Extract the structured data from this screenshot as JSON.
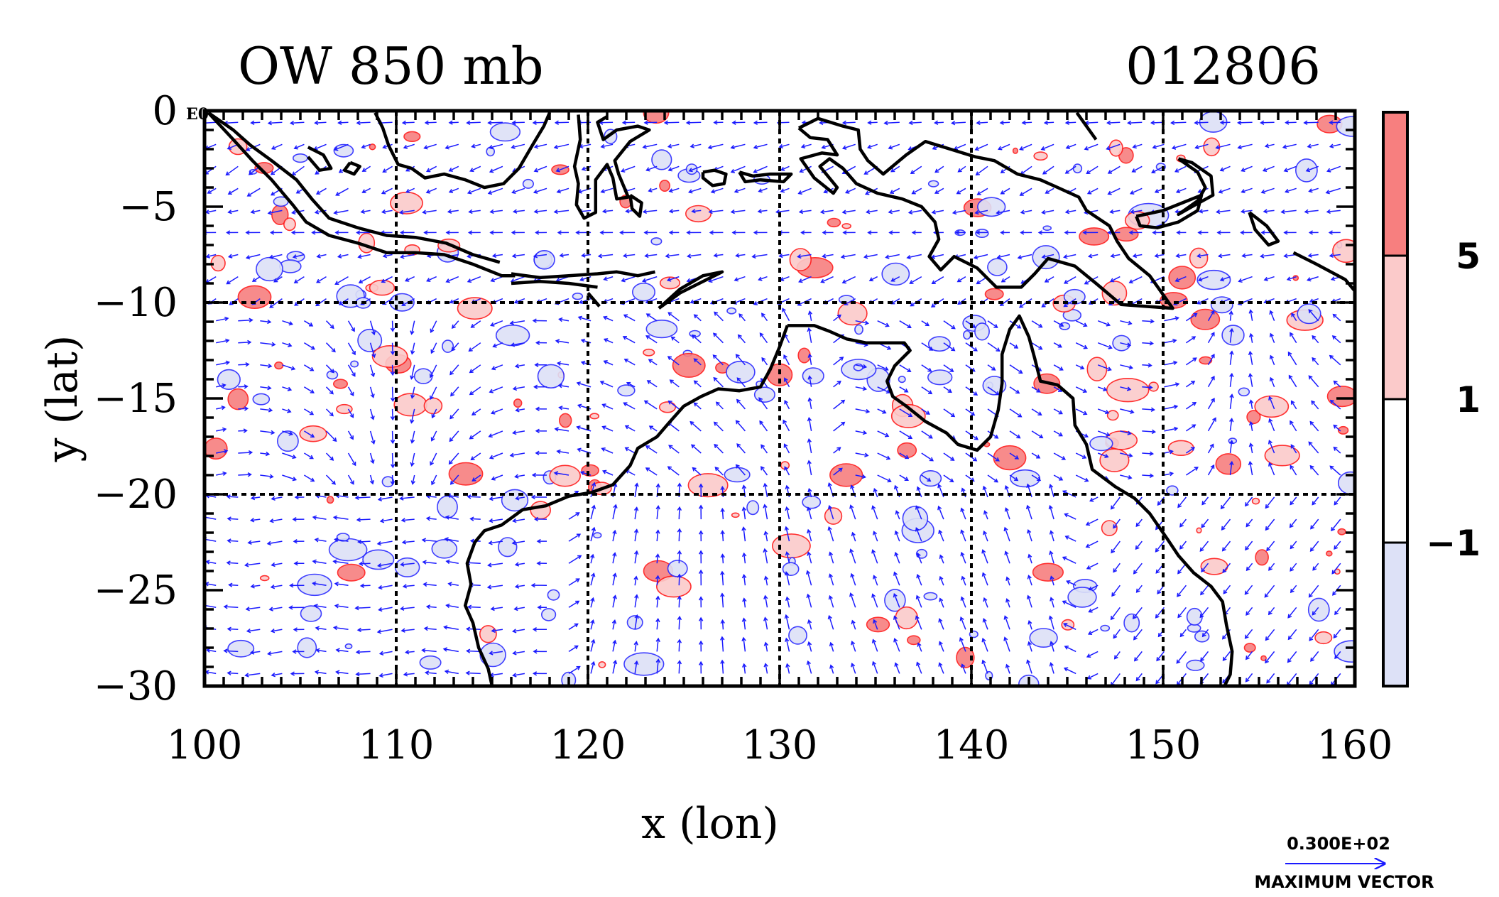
{
  "title_left": "OW 850 mb",
  "title_right": "012806",
  "corner_label": "E0",
  "xlabel": "x (lon)",
  "ylabel": "y (lat)",
  "colors": {
    "vector": "#1a1aff",
    "positive_contour": "#ff1a1a",
    "negative_contour": "#2a2aff",
    "coast": "#000000",
    "band_high": "#f77f7f",
    "band_mid": "#fbcaca",
    "band_zero": "#ffffff",
    "band_low": "#dde1f7"
  },
  "chart_data": {
    "type": "vector field with filled contours",
    "variable": "OW",
    "level": "850 mb",
    "time": "012806",
    "xlim": [
      100,
      160
    ],
    "ylim": [
      -30,
      0
    ],
    "xticks": [
      100,
      110,
      120,
      130,
      140,
      150,
      160
    ],
    "xtick_labels": [
      "100",
      "110",
      "120",
      "130",
      "140",
      "150",
      "160"
    ],
    "yticks": [
      0,
      -5,
      -10,
      -15,
      -20,
      -25,
      -30
    ],
    "ytick_labels": [
      "0",
      "−5",
      "−10",
      "−15",
      "−20",
      "−25",
      "−30"
    ],
    "grid_lon": [
      110,
      120,
      130,
      140,
      150
    ],
    "grid_lat": [
      -10,
      -20
    ],
    "grid": true,
    "colorbar": {
      "levels": [
        -1,
        1,
        5
      ],
      "labels": [
        "−1",
        "1",
        "5"
      ],
      "bands": [
        "below −1",
        "−1 to 1",
        "1 to 5",
        "above 5"
      ]
    },
    "vector_reference": {
      "value_label": "0.300E+02",
      "caption": "MAXIMUM VECTOR"
    },
    "coastline_segments": [
      [
        [
          100.2,
          -0.1
        ],
        [
          101.5,
          -1.5
        ],
        [
          102.5,
          -2.6
        ],
        [
          103.5,
          -3.6
        ],
        [
          104.6,
          -4.9
        ],
        [
          105.3,
          -5.8
        ],
        [
          106.5,
          -6.5
        ],
        [
          108.0,
          -6.9
        ],
        [
          109.5,
          -7.4
        ],
        [
          111.0,
          -7.4
        ],
        [
          112.5,
          -7.5
        ],
        [
          114.0,
          -8.0
        ],
        [
          115.5,
          -8.6
        ],
        [
          116.2,
          -8.6
        ]
      ],
      [
        [
          100.2,
          -0.1
        ],
        [
          101.5,
          -1.0
        ],
        [
          102.4,
          -1.8
        ],
        [
          103.5,
          -2.6
        ],
        [
          104.8,
          -3.6
        ],
        [
          105.6,
          -4.6
        ],
        [
          106.5,
          -5.6
        ],
        [
          108.0,
          -6.1
        ],
        [
          109.5,
          -6.5
        ],
        [
          111.0,
          -6.6
        ],
        [
          112.6,
          -6.9
        ],
        [
          114.0,
          -7.5
        ],
        [
          115.4,
          -7.9
        ]
      ],
      [
        [
          116.0,
          -8.5
        ],
        [
          117.5,
          -8.7
        ],
        [
          119.0,
          -8.6
        ],
        [
          120.5,
          -8.5
        ],
        [
          121.5,
          -8.4
        ],
        [
          122.6,
          -8.6
        ],
        [
          123.5,
          -8.4
        ]
      ],
      [
        [
          116.0,
          -9.0
        ],
        [
          117.5,
          -8.9
        ],
        [
          119.0,
          -9.0
        ],
        [
          120.5,
          -9.2
        ]
      ],
      [
        [
          120.0,
          -9.5
        ],
        [
          120.6,
          -10.2
        ]
      ],
      [
        [
          123.7,
          -10.3
        ],
        [
          124.8,
          -9.5
        ],
        [
          125.8,
          -9.0
        ],
        [
          127.0,
          -8.4
        ],
        [
          126.0,
          -8.6
        ],
        [
          124.8,
          -9.3
        ],
        [
          123.7,
          -10.3
        ]
      ],
      [
        [
          110.8,
          -3.0
        ],
        [
          111.5,
          -3.5
        ],
        [
          112.5,
          -3.3
        ],
        [
          113.6,
          -3.6
        ],
        [
          114.6,
          -4.0
        ],
        [
          115.6,
          -3.8
        ],
        [
          116.4,
          -3.0
        ],
        [
          117.1,
          -1.8
        ],
        [
          117.7,
          -0.8
        ],
        [
          118.0,
          -0.1
        ]
      ],
      [
        [
          108.9,
          -0.1
        ],
        [
          109.3,
          -0.9
        ],
        [
          109.6,
          -1.8
        ],
        [
          110.1,
          -2.8
        ],
        [
          110.8,
          -3.0
        ]
      ],
      [
        [
          107.6,
          -2.7
        ],
        [
          108.1,
          -2.9
        ],
        [
          107.8,
          -3.3
        ],
        [
          107.3,
          -3.1
        ],
        [
          107.6,
          -2.7
        ]
      ],
      [
        [
          105.4,
          -1.9
        ],
        [
          106.2,
          -2.3
        ],
        [
          106.6,
          -3.0
        ],
        [
          106.0,
          -3.1
        ],
        [
          105.4,
          -2.4
        ]
      ],
      [
        [
          119.5,
          -0.2
        ],
        [
          119.6,
          -1.5
        ],
        [
          119.3,
          -2.9
        ],
        [
          119.5,
          -3.8
        ],
        [
          119.4,
          -4.9
        ],
        [
          119.8,
          -5.6
        ],
        [
          120.4,
          -5.3
        ],
        [
          120.4,
          -3.6
        ],
        [
          121.0,
          -2.8
        ],
        [
          121.3,
          -3.5
        ],
        [
          121.5,
          -4.6
        ],
        [
          122.1,
          -4.5
        ],
        [
          121.6,
          -3.3
        ],
        [
          121.4,
          -2.6
        ],
        [
          122.2,
          -1.6
        ],
        [
          123.2,
          -1.0
        ],
        [
          122.6,
          -0.8
        ],
        [
          121.5,
          -1.0
        ],
        [
          120.8,
          -1.5
        ],
        [
          120.5,
          -0.6
        ],
        [
          121.0,
          -0.3
        ]
      ],
      [
        [
          122.2,
          -4.4
        ],
        [
          122.8,
          -4.8
        ],
        [
          122.7,
          -5.5
        ],
        [
          122.3,
          -5.1
        ],
        [
          122.2,
          -4.4
        ]
      ],
      [
        [
          126.0,
          -3.2
        ],
        [
          126.6,
          -3.1
        ],
        [
          127.2,
          -3.3
        ],
        [
          127.1,
          -3.8
        ],
        [
          126.5,
          -3.9
        ],
        [
          126.0,
          -3.5
        ],
        [
          126.0,
          -3.2
        ]
      ],
      [
        [
          127.9,
          -3.2
        ],
        [
          128.6,
          -3.4
        ],
        [
          129.5,
          -3.3
        ],
        [
          130.6,
          -3.3
        ],
        [
          130.2,
          -3.7
        ],
        [
          129.0,
          -3.6
        ],
        [
          128.2,
          -3.7
        ],
        [
          127.9,
          -3.2
        ]
      ],
      [
        [
          131.0,
          -0.9
        ],
        [
          132.0,
          -0.4
        ],
        [
          133.3,
          -0.8
        ],
        [
          134.1,
          -1.0
        ],
        [
          134.2,
          -2.0
        ],
        [
          134.6,
          -2.6
        ],
        [
          135.4,
          -3.3
        ],
        [
          136.6,
          -2.3
        ],
        [
          137.6,
          -1.6
        ],
        [
          138.9,
          -2.0
        ],
        [
          140.2,
          -2.4
        ],
        [
          141.2,
          -2.6
        ],
        [
          142.4,
          -3.3
        ],
        [
          143.6,
          -3.6
        ],
        [
          144.5,
          -4.0
        ],
        [
          145.6,
          -4.5
        ],
        [
          146.0,
          -5.2
        ],
        [
          147.2,
          -6.0
        ],
        [
          147.6,
          -6.8
        ],
        [
          148.2,
          -7.7
        ],
        [
          149.3,
          -8.6
        ],
        [
          150.5,
          -10.3
        ],
        [
          149.1,
          -10.2
        ],
        [
          147.8,
          -10.1
        ],
        [
          146.5,
          -9.0
        ],
        [
          145.4,
          -8.1
        ],
        [
          144.0,
          -7.7
        ],
        [
          143.3,
          -8.5
        ],
        [
          142.6,
          -9.2
        ],
        [
          141.3,
          -9.2
        ],
        [
          140.3,
          -8.2
        ],
        [
          139.1,
          -7.6
        ],
        [
          138.4,
          -8.3
        ],
        [
          137.8,
          -7.6
        ],
        [
          138.3,
          -6.7
        ],
        [
          138.1,
          -5.8
        ],
        [
          137.4,
          -5.0
        ],
        [
          136.4,
          -4.6
        ],
        [
          135.1,
          -4.3
        ],
        [
          134.0,
          -3.8
        ],
        [
          133.3,
          -3.0
        ],
        [
          132.6,
          -2.5
        ],
        [
          132.1,
          -2.9
        ],
        [
          133.0,
          -4.0
        ],
        [
          132.8,
          -4.3
        ],
        [
          131.8,
          -3.5
        ],
        [
          131.1,
          -2.5
        ],
        [
          132.2,
          -2.2
        ],
        [
          133.0,
          -2.3
        ],
        [
          132.5,
          -1.5
        ],
        [
          131.6,
          -1.4
        ],
        [
          131.0,
          -0.9
        ]
      ],
      [
        [
          145.5,
          -0.1
        ],
        [
          146.5,
          -1.5
        ]
      ],
      [
        [
          150.8,
          -2.5
        ],
        [
          151.8,
          -3.2
        ],
        [
          152.2,
          -4.0
        ],
        [
          151.8,
          -4.7
        ],
        [
          150.8,
          -5.4
        ],
        [
          151.5,
          -5.0
        ],
        [
          152.6,
          -4.4
        ],
        [
          152.5,
          -3.4
        ],
        [
          151.5,
          -2.7
        ],
        [
          150.8,
          -2.5
        ]
      ],
      [
        [
          148.6,
          -5.5
        ],
        [
          150.0,
          -5.2
        ],
        [
          151.0,
          -4.8
        ],
        [
          152.0,
          -4.4
        ],
        [
          151.8,
          -5.2
        ],
        [
          150.8,
          -5.8
        ],
        [
          149.7,
          -6.1
        ],
        [
          148.8,
          -6.0
        ],
        [
          148.6,
          -5.5
        ]
      ],
      [
        [
          154.5,
          -5.3
        ],
        [
          155.4,
          -6.0
        ],
        [
          156.0,
          -6.8
        ],
        [
          155.5,
          -7.0
        ],
        [
          154.8,
          -6.2
        ],
        [
          154.5,
          -5.3
        ]
      ],
      [
        [
          156.8,
          -7.4
        ],
        [
          158.0,
          -8.0
        ],
        [
          159.5,
          -8.8
        ],
        [
          160.0,
          -9.4
        ]
      ],
      [
        [
          130.4,
          -11.2
        ],
        [
          131.8,
          -11.2
        ],
        [
          132.6,
          -11.5
        ],
        [
          133.5,
          -11.9
        ],
        [
          134.5,
          -12.1
        ],
        [
          135.5,
          -12.1
        ],
        [
          136.5,
          -12.1
        ],
        [
          136.8,
          -12.5
        ],
        [
          136.0,
          -13.3
        ],
        [
          135.6,
          -14.1
        ],
        [
          135.9,
          -14.9
        ],
        [
          136.6,
          -15.4
        ],
        [
          137.6,
          -16.2
        ],
        [
          138.7,
          -16.8
        ],
        [
          139.3,
          -17.4
        ],
        [
          140.3,
          -17.7
        ],
        [
          141.0,
          -17.0
        ],
        [
          141.4,
          -15.6
        ],
        [
          141.6,
          -14.2
        ],
        [
          141.6,
          -12.7
        ],
        [
          142.0,
          -11.4
        ],
        [
          142.5,
          -10.7
        ],
        [
          143.0,
          -11.8
        ],
        [
          143.3,
          -12.9
        ],
        [
          143.6,
          -14.1
        ],
        [
          144.5,
          -14.3
        ],
        [
          145.3,
          -15.0
        ],
        [
          145.4,
          -16.4
        ],
        [
          146.0,
          -17.4
        ],
        [
          146.3,
          -18.7
        ],
        [
          147.5,
          -19.6
        ],
        [
          148.5,
          -20.2
        ],
        [
          149.3,
          -21.0
        ],
        [
          150.2,
          -22.3
        ],
        [
          150.8,
          -23.2
        ],
        [
          151.6,
          -24.1
        ],
        [
          152.5,
          -24.8
        ],
        [
          153.1,
          -25.6
        ],
        [
          153.3,
          -26.8
        ],
        [
          153.6,
          -28.2
        ],
        [
          153.5,
          -29.4
        ],
        [
          153.2,
          -30.0
        ]
      ],
      [
        [
          130.4,
          -11.2
        ],
        [
          130.0,
          -12.3
        ],
        [
          129.5,
          -13.5
        ],
        [
          129.0,
          -14.4
        ],
        [
          127.9,
          -14.6
        ],
        [
          126.8,
          -14.5
        ],
        [
          125.9,
          -14.9
        ],
        [
          125.0,
          -15.4
        ],
        [
          124.2,
          -16.3
        ],
        [
          123.6,
          -17.0
        ],
        [
          122.6,
          -17.6
        ],
        [
          122.2,
          -18.5
        ],
        [
          121.3,
          -19.5
        ],
        [
          120.2,
          -19.9
        ],
        [
          119.0,
          -20.1
        ],
        [
          117.8,
          -20.6
        ],
        [
          116.6,
          -20.8
        ],
        [
          115.5,
          -21.6
        ],
        [
          114.6,
          -21.9
        ],
        [
          114.1,
          -22.5
        ],
        [
          113.7,
          -23.6
        ],
        [
          113.9,
          -24.7
        ],
        [
          113.6,
          -25.8
        ],
        [
          114.0,
          -26.7
        ],
        [
          114.3,
          -28.0
        ],
        [
          114.8,
          -29.1
        ],
        [
          115.0,
          -30.0
        ]
      ]
    ]
  }
}
